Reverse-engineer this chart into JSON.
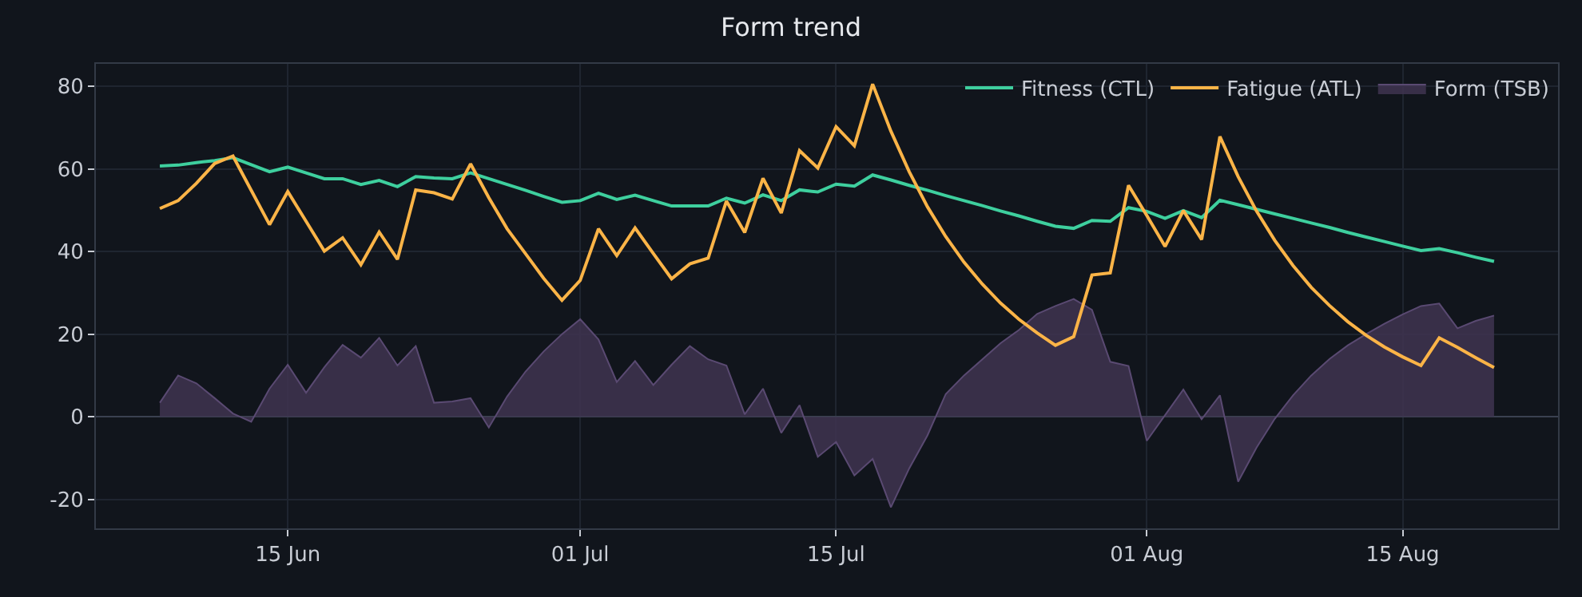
{
  "chart_data": {
    "type": "line",
    "title": "Form trend",
    "x": [
      "--06-08",
      "--06-09",
      "--06-10",
      "--06-11",
      "--06-12",
      "--06-13",
      "--06-14",
      "--06-15",
      "--06-16",
      "--06-17",
      "--06-18",
      "--06-19",
      "--06-20",
      "--06-21",
      "--06-22",
      "--06-23",
      "--06-24",
      "--06-25",
      "--06-26",
      "--06-27",
      "--06-28",
      "--06-29",
      "--06-30",
      "--07-01",
      "--07-02",
      "--07-03",
      "--07-04",
      "--07-05",
      "--07-06",
      "--07-07",
      "--07-08",
      "--07-09",
      "--07-10",
      "--07-11",
      "--07-12",
      "--07-13",
      "--07-14",
      "--07-15",
      "--07-16",
      "--07-17",
      "--07-18",
      "--07-19",
      "--07-20",
      "--07-21",
      "--07-22",
      "--07-23",
      "--07-24",
      "--07-25",
      "--07-26",
      "--07-27",
      "--07-28",
      "--07-29",
      "--07-30",
      "--07-31",
      "--08-01",
      "--08-02",
      "--08-03",
      "--08-04",
      "--08-05",
      "--08-06",
      "--08-07",
      "--08-08",
      "--08-09",
      "--08-10",
      "--08-11",
      "--08-12",
      "--08-13",
      "--08-14",
      "--08-15",
      "--08-16",
      "--08-17",
      "--08-18",
      "--08-19",
      "--08-20"
    ],
    "series": [
      {
        "name": "Form (TSB)",
        "type": "area",
        "color": "#3f3450",
        "values": [
          3.4,
          10.0,
          8.1,
          4.5,
          0.8,
          -1.2,
          6.8,
          12.6,
          5.8,
          12.0,
          17.4,
          14.3,
          19.1,
          12.4,
          17.1,
          3.4,
          3.7,
          4.5,
          -2.6,
          4.9,
          10.9,
          15.8,
          20.0,
          23.6,
          18.7,
          8.4,
          13.5,
          7.7,
          12.6,
          17.1,
          13.9,
          12.4,
          0.6,
          6.8,
          -3.9,
          2.8,
          -9.7,
          -6.1,
          -14.2,
          -10.2,
          -21.9,
          -12.5,
          -4.5,
          5.5,
          10.0,
          13.9,
          17.8,
          21.0,
          24.9,
          26.8,
          28.5,
          25.9,
          13.3,
          12.3,
          -5.8,
          0.4,
          6.6,
          -0.6,
          5.2,
          -15.7,
          -7.5,
          -0.5,
          5.2,
          10.0,
          14.0,
          17.3,
          20.0,
          22.5,
          24.8,
          26.8,
          27.4,
          21.4,
          23.2,
          24.5
        ]
      },
      {
        "name": "Fitness (CTL)",
        "color": "#3ecf9e",
        "values": [
          60.7,
          60.9,
          61.5,
          62.0,
          62.7,
          61.0,
          59.3,
          60.4,
          59.0,
          57.6,
          57.6,
          56.2,
          57.2,
          55.7,
          58.1,
          57.8,
          57.6,
          59.0,
          57.6,
          56.2,
          54.8,
          53.3,
          51.9,
          52.3,
          54.1,
          52.6,
          53.6,
          52.3,
          51.0,
          51.0,
          51.0,
          52.9,
          51.7,
          53.7,
          52.3,
          54.9,
          54.4,
          56.3,
          55.8,
          58.5,
          57.3,
          56.0,
          54.8,
          53.5,
          52.3,
          51.1,
          49.8,
          48.6,
          47.3,
          46.1,
          45.6,
          47.5,
          47.3,
          50.6,
          49.7,
          48.0,
          49.9,
          48.2,
          52.4,
          51.3,
          50.2,
          49.1,
          48.0,
          46.9,
          45.8,
          44.6,
          43.5,
          42.4,
          41.3,
          40.2,
          40.7,
          39.7,
          38.6,
          37.6
        ]
      },
      {
        "name": "Fatigue (ATL)",
        "color": "#fbb447",
        "values": [
          50.4,
          52.3,
          56.5,
          61.3,
          63.1,
          54.8,
          46.5,
          54.5,
          47.3,
          40.1,
          43.3,
          36.8,
          44.7,
          38.1,
          54.9,
          54.2,
          52.7,
          61.2,
          53.0,
          45.5,
          39.5,
          33.5,
          28.2,
          33.0,
          45.5,
          39.0,
          45.7,
          39.5,
          33.4,
          37.0,
          38.4,
          52.2,
          44.6,
          57.7,
          49.3,
          64.4,
          60.2,
          70.2,
          65.6,
          80.5,
          69.1,
          59.3,
          50.8,
          43.6,
          37.4,
          32.1,
          27.5,
          23.6,
          20.3,
          17.3,
          19.4,
          34.3,
          34.8,
          56.0,
          48.7,
          41.2,
          49.9,
          42.9,
          67.8,
          58.1,
          49.8,
          42.7,
          36.6,
          31.3,
          26.9,
          23.0,
          19.7,
          16.9,
          14.5,
          12.4,
          19.1,
          16.8,
          14.3,
          11.9
        ]
      }
    ],
    "xlim": [
      "--06-04T12:00",
      "--08-23T12:00"
    ],
    "xticks": [
      {
        "value": "--06-15",
        "label": "15 Jun"
      },
      {
        "value": "--07-01",
        "label": "01 Jul"
      },
      {
        "value": "--07-15",
        "label": "15 Jul"
      },
      {
        "value": "--08-01",
        "label": "01 Aug"
      },
      {
        "value": "--08-15",
        "label": "15 Aug"
      }
    ],
    "ylim": [
      -27,
      85.4
    ],
    "yticks": [
      -20,
      0,
      20,
      40,
      60,
      80
    ],
    "grid": true,
    "legend": "top right",
    "marker": "none",
    "line_style": "solid"
  }
}
